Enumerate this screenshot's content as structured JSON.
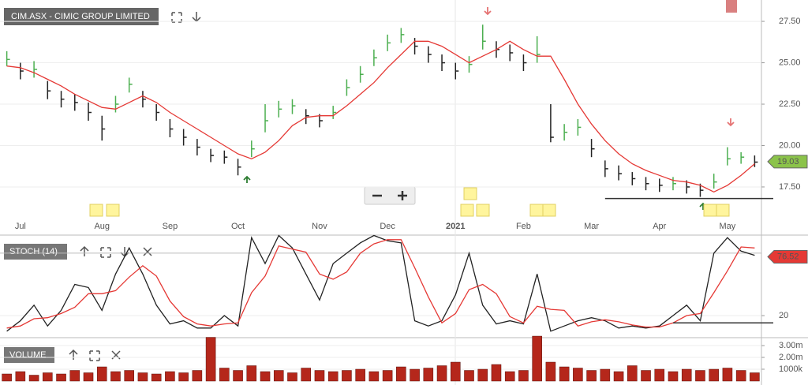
{
  "chart_data": [
    {
      "type": "ohlc",
      "title": "CIM.ASX - CIMIC GROUP LIMITED",
      "categories": [
        null,
        "Jul",
        null,
        null,
        null,
        null,
        null,
        "Aug",
        null,
        null,
        null,
        null,
        "Sep",
        null,
        null,
        null,
        null,
        "Oct",
        null,
        null,
        null,
        null,
        null,
        "Nov",
        null,
        null,
        null,
        null,
        "Dec",
        null,
        null,
        null,
        null,
        "2021",
        null,
        null,
        null,
        null,
        "Feb",
        null,
        null,
        null,
        null,
        "Mar",
        null,
        null,
        null,
        null,
        "Apr",
        null,
        null,
        null,
        null,
        "May",
        null,
        null
      ],
      "close": [
        25.2,
        24.5,
        24.6,
        23.3,
        22.8,
        22.6,
        22.0,
        21.0,
        22.5,
        23.7,
        22.8,
        22.0,
        21.0,
        20.5,
        19.9,
        19.4,
        19.3,
        18.7,
        19.8,
        21.5,
        22.2,
        22.4,
        21.8,
        21.5,
        22.0,
        23.5,
        24.3,
        25.3,
        26.2,
        26.7,
        26.0,
        25.5,
        25.0,
        24.5,
        24.9,
        26.3,
        25.8,
        25.6,
        25.0,
        25.5,
        20.5,
        20.8,
        21.1,
        19.8,
        18.6,
        18.3,
        18.0,
        17.7,
        17.6,
        17.7,
        17.5,
        17.3,
        17.8,
        19.2,
        19.3,
        19.0
      ],
      "high": [
        25.7,
        25.0,
        25.1,
        23.9,
        23.3,
        23.1,
        22.6,
        21.8,
        23.0,
        24.1,
        23.3,
        22.5,
        21.6,
        21.0,
        20.4,
        19.8,
        19.7,
        19.2,
        20.3,
        22.5,
        22.7,
        22.8,
        22.2,
        21.9,
        22.4,
        24.0,
        24.8,
        25.8,
        26.7,
        27.1,
        26.5,
        26.0,
        25.5,
        25.0,
        25.4,
        27.3,
        26.3,
        26.1,
        25.5,
        26.6,
        22.5,
        21.3,
        21.6,
        20.4,
        19.1,
        18.8,
        18.4,
        18.1,
        18.0,
        18.1,
        17.9,
        17.7,
        18.3,
        19.9,
        19.6,
        19.4
      ],
      "low": [
        24.8,
        24.0,
        24.1,
        22.8,
        22.3,
        22.1,
        21.5,
        20.3,
        22.0,
        23.2,
        22.3,
        21.5,
        20.5,
        20.0,
        19.4,
        19.0,
        18.9,
        18.2,
        19.3,
        20.8,
        21.7,
        21.9,
        21.3,
        21.1,
        21.6,
        23.0,
        23.8,
        24.8,
        25.7,
        26.2,
        25.5,
        25.0,
        24.5,
        24.0,
        24.4,
        25.8,
        25.3,
        25.1,
        24.5,
        25.0,
        20.2,
        20.3,
        20.6,
        19.3,
        18.1,
        17.9,
        17.6,
        17.3,
        17.2,
        17.3,
        17.1,
        16.9,
        17.4,
        18.8,
        18.9,
        18.7
      ],
      "up_color": "#4caf50",
      "down_color": "#222222",
      "ma": {
        "color": "#e53935",
        "values": [
          24.8,
          24.7,
          24.4,
          24.0,
          23.6,
          23.1,
          22.7,
          22.3,
          22.2,
          22.6,
          23.0,
          22.6,
          22.0,
          21.5,
          21.0,
          20.5,
          20.0,
          19.5,
          19.2,
          19.6,
          20.3,
          21.2,
          21.7,
          21.8,
          21.8,
          22.4,
          23.1,
          23.8,
          24.7,
          25.5,
          26.3,
          26.3,
          26.0,
          25.5,
          25.0,
          25.4,
          25.8,
          26.3,
          25.8,
          25.4,
          25.4,
          24.0,
          22.5,
          21.3,
          20.3,
          19.5,
          18.9,
          18.5,
          18.2,
          17.9,
          17.8,
          17.6,
          17.2,
          17.6,
          18.2,
          18.9
        ]
      },
      "support": 16.8,
      "last_price": 19.03,
      "ylim": [
        15.64,
        28.79
      ],
      "yticks": [
        {
          "value": 17.5,
          "label": "17.50"
        },
        {
          "value": 20,
          "label": "20.00"
        },
        {
          "value": 22.5,
          "label": "22.50"
        },
        {
          "value": 25,
          "label": "25.00"
        },
        {
          "value": 27.5,
          "label": "27.50"
        }
      ]
    },
    {
      "type": "line",
      "title": "STOCH (14)",
      "series": [
        {
          "color": "#222222",
          "values": [
            5,
            15,
            30,
            10,
            25,
            50,
            47,
            25,
            60,
            85,
            60,
            30,
            12,
            15,
            8,
            8,
            20,
            10,
            95,
            70,
            97,
            85,
            60,
            35,
            70,
            80,
            90,
            97,
            92,
            90,
            15,
            10,
            15,
            40,
            80,
            30,
            12,
            15,
            12,
            60,
            5,
            10,
            15,
            18,
            15,
            8,
            10,
            8,
            10,
            20,
            30,
            15,
            80,
            95,
            82,
            78
          ]
        },
        {
          "color": "#e53935",
          "values": [
            8,
            10,
            17,
            18,
            22,
            28,
            41,
            41,
            44,
            57,
            68,
            58,
            34,
            19,
            12,
            10,
            12,
            13,
            42,
            58,
            87,
            84,
            81,
            60,
            55,
            62,
            80,
            89,
            93,
            93,
            66,
            38,
            13,
            22,
            45,
            50,
            41,
            19,
            13,
            29,
            26,
            25,
            10,
            14,
            16,
            14,
            11,
            9,
            9,
            13,
            20,
            22,
            42,
            63,
            86,
            85
          ]
        }
      ],
      "levels": [
        20,
        80
      ],
      "support": 13,
      "last_value": 76.52,
      "ylim": [
        0.3,
        97.4
      ],
      "yticks": [
        20
      ]
    },
    {
      "type": "bar",
      "title": "VOLUME",
      "color": "#b5271b",
      "values": [
        0.6,
        0.8,
        0.5,
        0.7,
        0.6,
        0.9,
        0.7,
        1.2,
        0.8,
        0.9,
        0.7,
        0.6,
        0.8,
        0.7,
        0.9,
        3.7,
        1.1,
        0.9,
        1.3,
        0.8,
        0.9,
        0.7,
        1.1,
        0.9,
        0.8,
        0.9,
        1.0,
        0.8,
        0.9,
        1.2,
        1.0,
        1.1,
        1.3,
        1.6,
        0.9,
        1.0,
        1.4,
        0.8,
        0.9,
        3.8,
        1.6,
        1.2,
        1.1,
        0.9,
        1.0,
        0.8,
        1.3,
        0.9,
        1.0,
        0.8,
        1.0,
        0.9,
        1.0,
        1.1,
        0.9,
        0.7
      ],
      "ylim": [
        0,
        3.67
      ],
      "yticks": [
        {
          "value": 1,
          "label": "1000k"
        },
        {
          "value": 2,
          "label": "2.00m"
        },
        {
          "value": 3,
          "label": "3.00m"
        }
      ]
    }
  ]
}
